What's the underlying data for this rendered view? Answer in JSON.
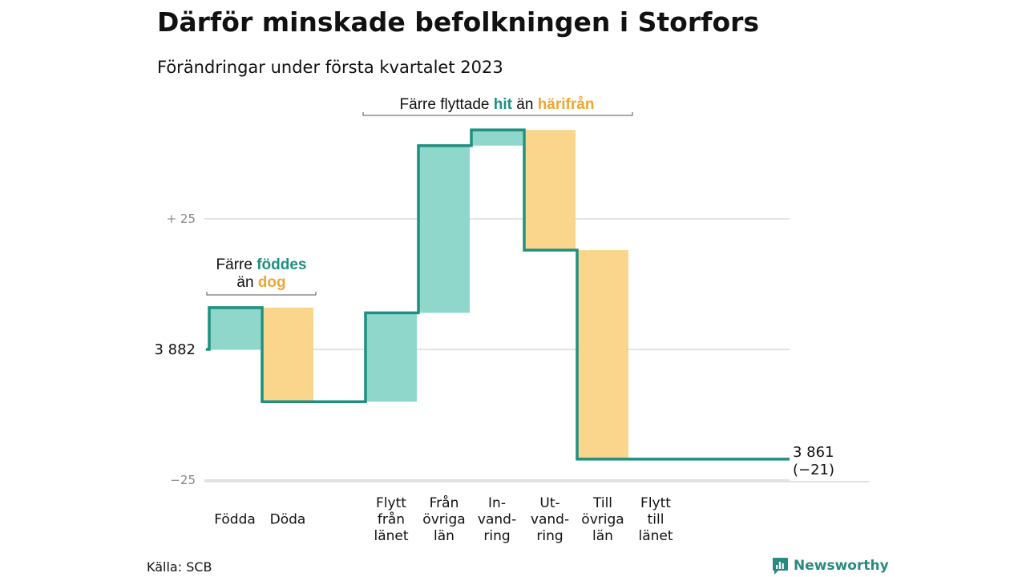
{
  "title": "Därför minskade befolkningen i Storfors",
  "subtitle": "Förändringar under första kvartalet 2023",
  "source": "Källa: SCB",
  "brand": "Newsworthy",
  "colors": {
    "line": "#1e9080",
    "increase": "#8fd6cb",
    "decrease": "#fad58c",
    "highlight_teal": "#1e9080",
    "highlight_orange": "#f0a530",
    "grid": "#d9d9d9"
  },
  "annotations": [
    {
      "lines": [
        [
          {
            "text": "Färre ",
            "style": "plain"
          },
          {
            "text": "föddes",
            "style": "teal"
          }
        ],
        [
          {
            "text": "än ",
            "style": "plain"
          },
          {
            "text": "dog",
            "style": "orange"
          }
        ]
      ]
    },
    {
      "lines": [
        [
          {
            "text": "Färre flyttade ",
            "style": "plain"
          },
          {
            "text": "hit",
            "style": "teal"
          },
          {
            "text": " än ",
            "style": "plain"
          },
          {
            "text": "härifrån",
            "style": "orange"
          }
        ]
      ]
    }
  ],
  "chart_data": {
    "type": "waterfall",
    "start": 3882,
    "start_label": "3 882",
    "end": 3861,
    "end_label": "3 861",
    "end_change_label": "(−21)",
    "y_ticks": [
      {
        "value": 25,
        "label": "+ 25"
      },
      {
        "value": -25,
        "label": "−25"
      }
    ],
    "ylim": [
      -25,
      53
    ],
    "steps": [
      {
        "label": [
          "",
          "Födda"
        ],
        "change": 8
      },
      {
        "label": [
          "",
          "Döda"
        ],
        "change": -18
      },
      {
        "label": [
          "Flytt",
          "från",
          "länet"
        ],
        "change": 17
      },
      {
        "label": [
          "Från",
          "övriga",
          "län"
        ],
        "change": 32
      },
      {
        "label": [
          "In-",
          "vand-",
          "ring"
        ],
        "change": 3
      },
      {
        "label": [
          "Ut-",
          "vand-",
          "ring"
        ],
        "change": -23
      },
      {
        "label": [
          "Till",
          "övriga",
          "län"
        ],
        "change": -40
      },
      {
        "label": [
          "Flytt",
          "till",
          "länet"
        ],
        "change": 0
      }
    ]
  }
}
